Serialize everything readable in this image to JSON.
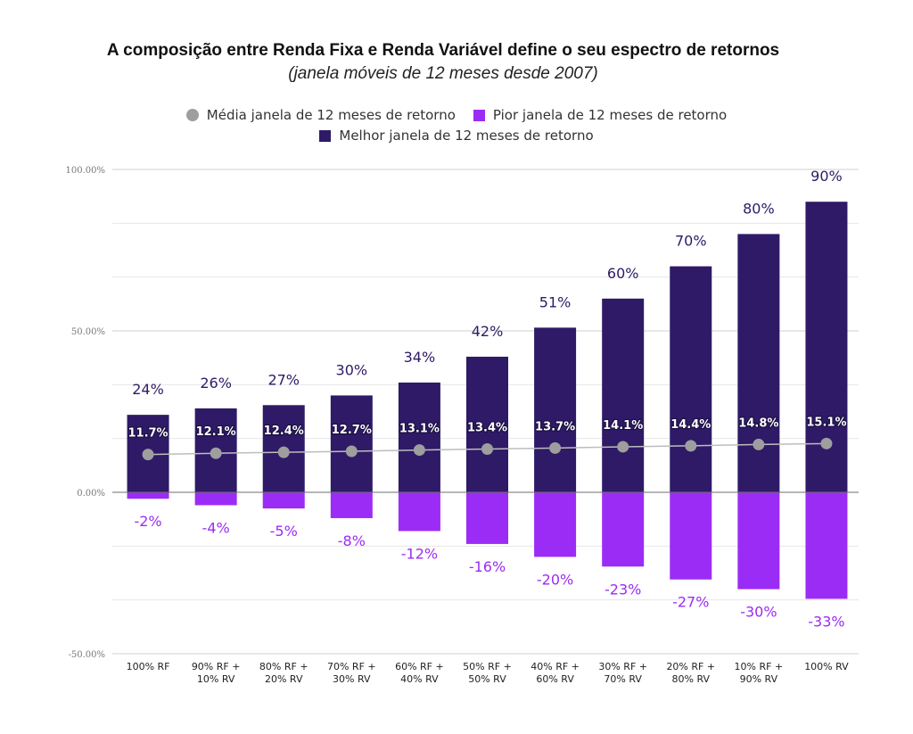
{
  "title": "A composição entre Renda Fixa e Renda Variável define o seu espectro de retornos",
  "subtitle": "(janela móveis de 12 meses desde 2007)",
  "chart_data": {
    "type": "bar",
    "categories": [
      [
        "100% RF"
      ],
      [
        "90% RF +",
        "10% RV"
      ],
      [
        "80% RF +",
        "20% RV"
      ],
      [
        "70% RF +",
        "30% RV"
      ],
      [
        "60% RF +",
        "40% RV"
      ],
      [
        "50% RF +",
        "50% RV"
      ],
      [
        "40% RF +",
        "60% RV"
      ],
      [
        "30% RF +",
        "70% RV"
      ],
      [
        "20% RF +",
        "80% RV"
      ],
      [
        "10% RF +",
        "90% RV"
      ],
      [
        "100% RV"
      ]
    ],
    "series": [
      {
        "name": "Média janela de 12 meses de retorno",
        "kind": "point",
        "color": "#9e9e9e",
        "values": [
          11.7,
          12.1,
          12.4,
          12.7,
          13.1,
          13.4,
          13.7,
          14.1,
          14.4,
          14.8,
          15.1
        ],
        "labels": [
          "11.7%",
          "12.1%",
          "12.4%",
          "12.7%",
          "13.1%",
          "13.4%",
          "13.7%",
          "14.1%",
          "14.4%",
          "14.8%",
          "15.1%"
        ]
      },
      {
        "name": "Pior janela de 12 meses de retorno",
        "kind": "bar",
        "color": "#9b2cf5",
        "values": [
          -2,
          -4,
          -5,
          -8,
          -12,
          -16,
          -20,
          -23,
          -27,
          -30,
          -33
        ],
        "labels": [
          "-2%",
          "-4%",
          "-5%",
          "-8%",
          "-12%",
          "-16%",
          "-20%",
          "-23%",
          "-27%",
          "-30%",
          "-33%"
        ]
      },
      {
        "name": "Melhor janela de 12 meses de retorno",
        "kind": "bar",
        "color": "#2e1a66",
        "values": [
          24,
          26,
          27,
          30,
          34,
          42,
          51,
          60,
          70,
          80,
          90
        ],
        "labels": [
          "24%",
          "26%",
          "27%",
          "30%",
          "34%",
          "42%",
          "51%",
          "60%",
          "70%",
          "80%",
          "90%"
        ]
      }
    ],
    "ylim": [
      -50,
      100
    ],
    "yticks": [
      100,
      50,
      0,
      -50
    ],
    "ytick_labels": [
      "100.00%",
      "50.00%",
      "0.00%",
      "-50.00%"
    ],
    "grid": true,
    "legend_position": "top-center"
  }
}
